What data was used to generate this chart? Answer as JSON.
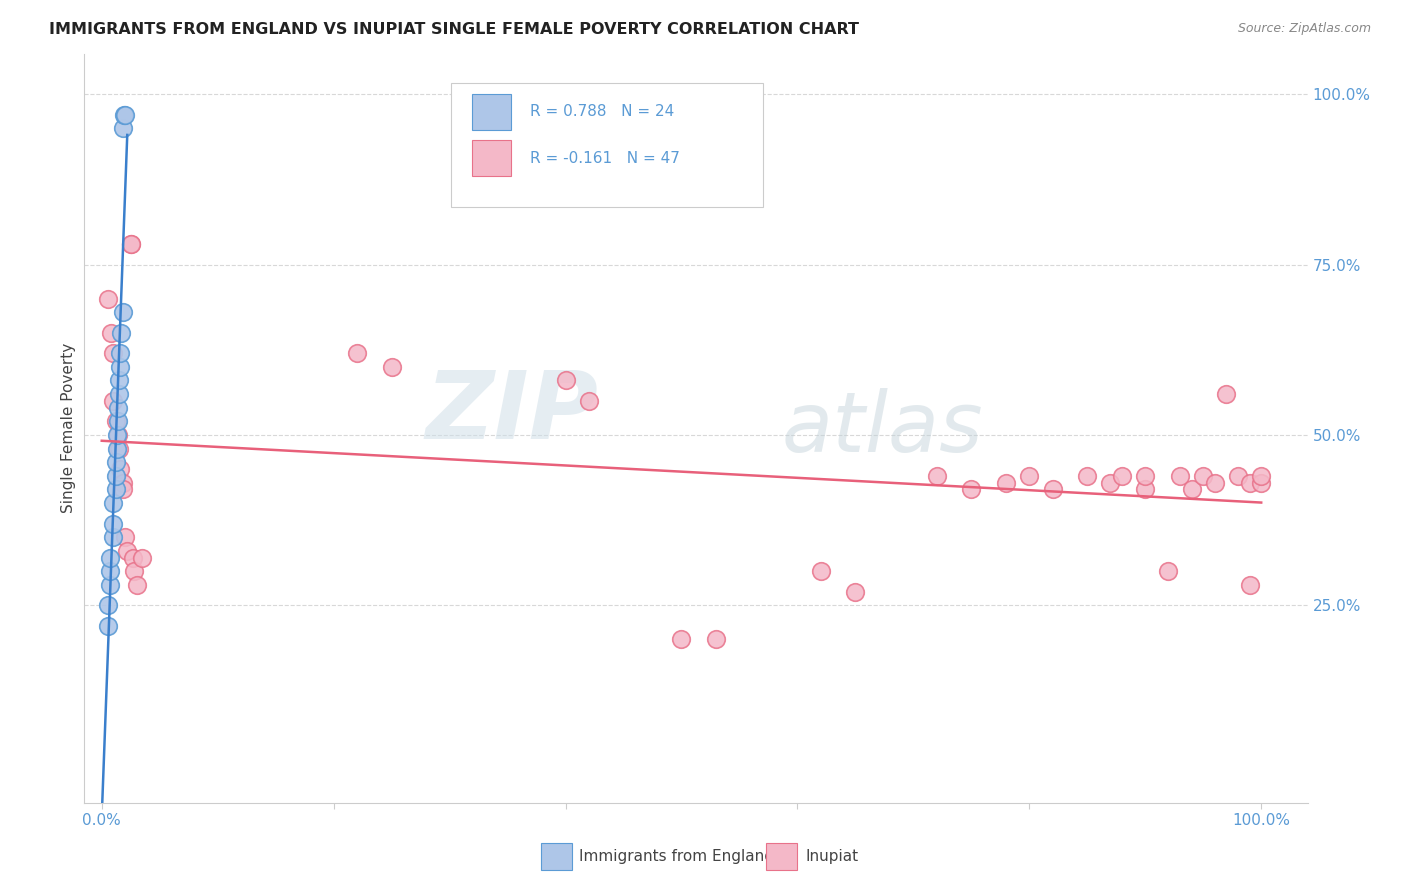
{
  "title": "IMMIGRANTS FROM ENGLAND VS INUPIAT SINGLE FEMALE POVERTY CORRELATION CHART",
  "source": "Source: ZipAtlas.com",
  "ylabel": "Single Female Poverty",
  "legend_label1": "Immigrants from England",
  "legend_label2": "Inupiat",
  "R1": 0.788,
  "N1": 24,
  "R2": -0.161,
  "N2": 47,
  "color_england_fill": "#aec6e8",
  "color_england_edge": "#5b9bd5",
  "color_inupiat_fill": "#f4b8c8",
  "color_inupiat_edge": "#e8728a",
  "color_england_line": "#3a7fcc",
  "color_inupiat_line": "#e8607a",
  "watermark_zip": "#d0dfe8",
  "watermark_atlas": "#c0d0d8",
  "grid_color": "#d8d8d8",
  "tick_color": "#5b9bd5",
  "england_x": [
    0.005,
    0.005,
    0.007,
    0.007,
    0.007,
    0.01,
    0.01,
    0.01,
    0.012,
    0.012,
    0.012,
    0.013,
    0.013,
    0.014,
    0.014,
    0.015,
    0.015,
    0.016,
    0.016,
    0.017,
    0.018,
    0.018,
    0.019,
    0.02
  ],
  "england_y": [
    0.22,
    0.25,
    0.28,
    0.3,
    0.32,
    0.35,
    0.37,
    0.4,
    0.42,
    0.44,
    0.46,
    0.48,
    0.5,
    0.52,
    0.54,
    0.56,
    0.58,
    0.6,
    0.62,
    0.65,
    0.68,
    0.95,
    0.97,
    0.97
  ],
  "inupiat_x": [
    0.005,
    0.008,
    0.01,
    0.01,
    0.012,
    0.014,
    0.015,
    0.016,
    0.018,
    0.018,
    0.02,
    0.022,
    0.025,
    0.025,
    0.027,
    0.028,
    0.03,
    0.035,
    0.22,
    0.25,
    0.4,
    0.42,
    0.5,
    0.53,
    0.62,
    0.65,
    0.72,
    0.75,
    0.78,
    0.8,
    0.82,
    0.85,
    0.87,
    0.88,
    0.9,
    0.9,
    0.92,
    0.93,
    0.94,
    0.95,
    0.96,
    0.97,
    0.98,
    0.99,
    0.99,
    1.0,
    1.0
  ],
  "inupiat_y": [
    0.7,
    0.65,
    0.62,
    0.55,
    0.52,
    0.5,
    0.48,
    0.45,
    0.43,
    0.42,
    0.35,
    0.33,
    0.78,
    0.78,
    0.32,
    0.3,
    0.28,
    0.32,
    0.62,
    0.6,
    0.58,
    0.55,
    0.2,
    0.2,
    0.3,
    0.27,
    0.44,
    0.42,
    0.43,
    0.44,
    0.42,
    0.44,
    0.43,
    0.44,
    0.42,
    0.44,
    0.3,
    0.44,
    0.42,
    0.44,
    0.43,
    0.56,
    0.44,
    0.28,
    0.43,
    0.43,
    0.44
  ],
  "xlim": [
    0.0,
    1.0
  ],
  "ylim": [
    0.0,
    1.0
  ],
  "xticks": [
    0.0,
    1.0
  ],
  "xticklabels": [
    "0.0%",
    "100.0%"
  ],
  "yticks": [
    0.25,
    0.5,
    0.75,
    1.0
  ],
  "yticklabels": [
    "25.0%",
    "50.0%",
    "75.0%",
    "100.0%"
  ]
}
